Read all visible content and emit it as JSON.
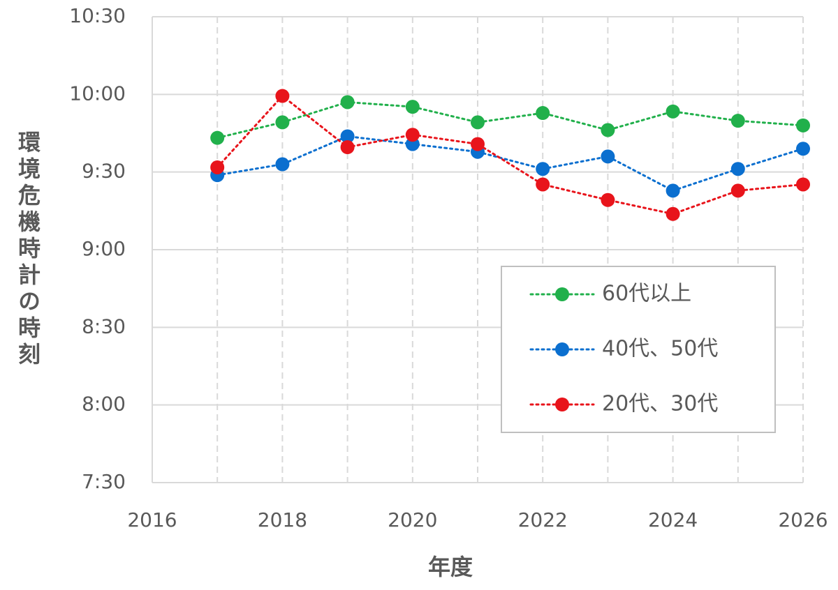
{
  "chart_data": {
    "type": "line",
    "xlabel": "年度",
    "ylabel": "環境危機時計の時刻",
    "xlim": [
      2016,
      2026
    ],
    "xticks": [
      2016,
      2018,
      2020,
      2022,
      2024,
      2026
    ],
    "ylim_minutes": [
      450,
      630
    ],
    "yticks": [
      {
        "minutes": 450,
        "label": "7:30"
      },
      {
        "minutes": 480,
        "label": "8:00"
      },
      {
        "minutes": 510,
        "label": "8:30"
      },
      {
        "minutes": 540,
        "label": "9:00"
      },
      {
        "minutes": 570,
        "label": "9:30"
      },
      {
        "minutes": 600,
        "label": "10:00"
      },
      {
        "minutes": 630,
        "label": "10:30"
      }
    ],
    "grid": true,
    "legend_position": "bottom-right",
    "x": [
      2017,
      2018,
      2019,
      2020,
      2021,
      2022,
      2023,
      2024,
      2025,
      2026
    ],
    "series": [
      {
        "name": "60代以上",
        "color": "#21b04b",
        "values": [
          9.72,
          9.82,
          9.95,
          9.92,
          9.82,
          9.88,
          9.77,
          9.89,
          9.83,
          9.8
        ],
        "labels": [
          "9:43",
          "9:49",
          "9:57",
          "9:55",
          "9:49",
          "9:53",
          "9:46",
          "9:53",
          "9:50",
          "9:48"
        ]
      },
      {
        "name": "40代、50代",
        "color": "#0b6fcf",
        "values": [
          9.48,
          9.55,
          9.73,
          9.68,
          9.63,
          9.52,
          9.6,
          9.38,
          9.52,
          9.65
        ],
        "labels": [
          "9:29",
          "9:33",
          "9:44",
          "9:41",
          "9:38",
          "9:31",
          "9:36",
          "9:23",
          "9:31",
          "9:39"
        ]
      },
      {
        "name": "20代、30代",
        "color": "#e8141b",
        "values": [
          9.53,
          9.99,
          9.66,
          9.74,
          9.68,
          9.42,
          9.32,
          9.23,
          9.38,
          9.42
        ],
        "labels": [
          "9:32",
          "9:59",
          "9:40",
          "9:45",
          "9:41",
          "9:25",
          "9:19",
          "9:14",
          "9:23",
          "9:25"
        ]
      }
    ]
  }
}
